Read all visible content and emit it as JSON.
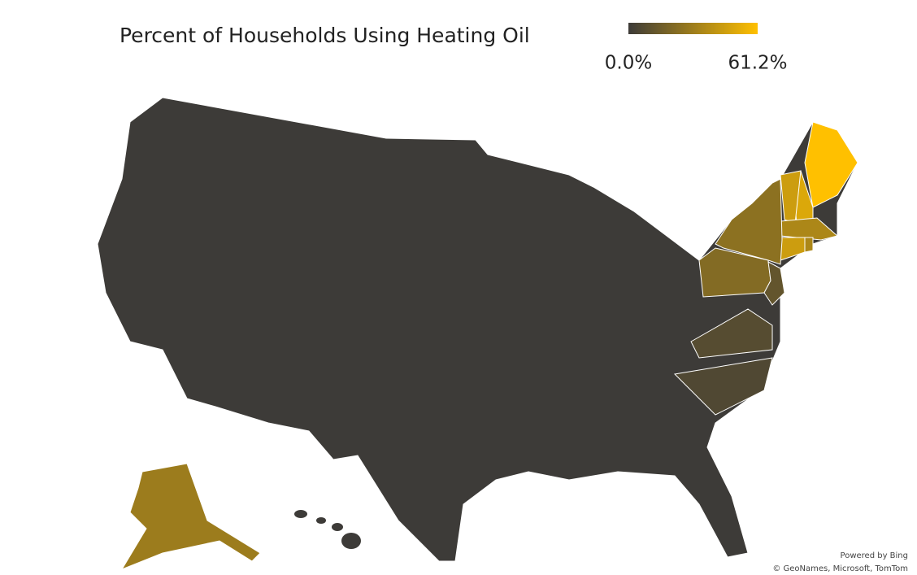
{
  "chart_data": {
    "type": "choropleth",
    "title": "Percent of Households Using Heating Oil",
    "legend": {
      "ticks": [
        {
          "value": 0,
          "label": "0.0%"
        },
        {
          "value": 61.2,
          "label": "61.2%"
        }
      ],
      "colors": [
        "#3d3b38",
        "#ffc000"
      ]
    },
    "values": [
      61.2,
      50,
      45,
      35,
      45,
      35,
      25,
      22,
      12,
      30,
      8,
      6
    ],
    "attribution": [
      "Powered by Bing",
      "© GeoNames, Microsoft, TomTom"
    ]
  }
}
